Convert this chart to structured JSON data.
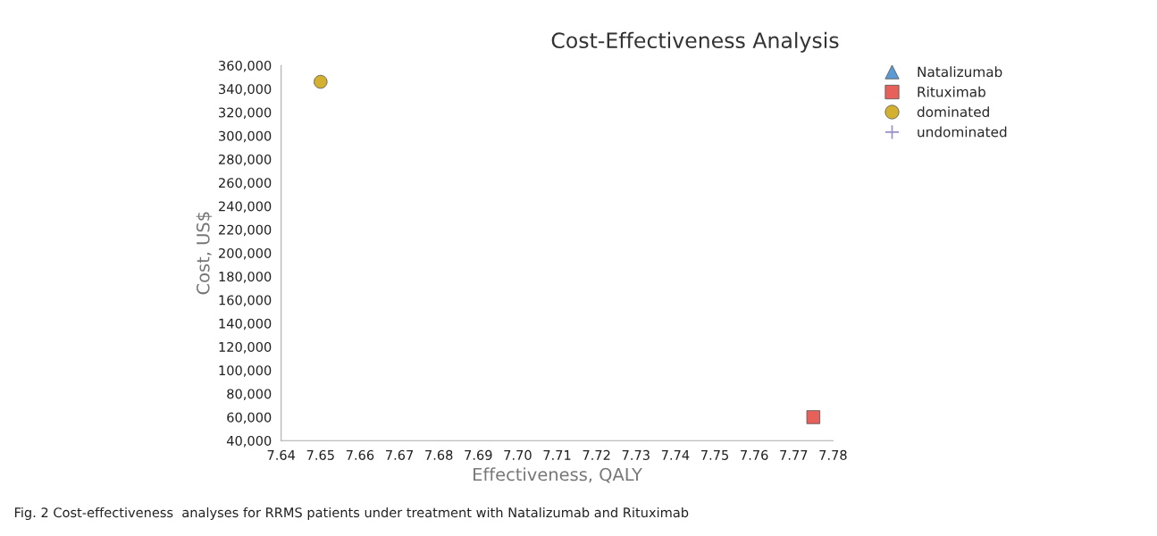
{
  "chart_data": {
    "type": "scatter",
    "title": "Cost-Effectiveness Analysis",
    "xlabel": "Effectiveness, QALY",
    "ylabel": "Cost, US$",
    "series": [
      {
        "name": "Natalizumab",
        "color": "#5b9bd5",
        "marker": "triangle",
        "values": [
          null
        ]
      },
      {
        "name": "Rituximab",
        "color": "#e8605a",
        "marker": "square",
        "x": [
          7.775
        ],
        "values": [
          60000
        ]
      },
      {
        "name": "dominated",
        "color": "#d4b030",
        "marker": "circle",
        "x": [
          7.65
        ],
        "values": [
          346000
        ]
      },
      {
        "name": "undominated",
        "color": "#9a90c8",
        "marker": "cross",
        "values": [
          null
        ]
      }
    ],
    "xlim": [
      7.64,
      7.78
    ],
    "xticks": [
      7.64,
      7.65,
      7.66,
      7.67,
      7.68,
      7.69,
      {
        "value": 7.7,
        "label": "7.70"
      },
      7.71,
      7.72,
      7.73,
      7.74,
      7.75,
      7.76,
      7.77,
      7.78
    ],
    "ylim": [
      40000,
      360000
    ],
    "yticks": [
      {
        "value": 40000,
        "label": "40,000"
      },
      {
        "value": 60000,
        "label": "60,000"
      },
      {
        "value": 80000,
        "label": "80,000"
      },
      {
        "value": 100000,
        "label": "100,000"
      },
      {
        "value": 120000,
        "label": "120,000"
      },
      {
        "value": 140000,
        "label": "140,000"
      },
      {
        "value": 160000,
        "label": "160,000"
      },
      {
        "value": 180000,
        "label": "180,000"
      },
      {
        "value": 200000,
        "label": "200,000"
      },
      {
        "value": 220000,
        "label": "220,000"
      },
      {
        "value": 240000,
        "label": "240,000"
      },
      {
        "value": 260000,
        "label": "260,000"
      },
      {
        "value": 280000,
        "label": "280,000"
      },
      {
        "value": 300000,
        "label": "300,000"
      },
      {
        "value": 320000,
        "label": "320,000"
      },
      {
        "value": 340000,
        "label": "340,000"
      },
      {
        "value": 360000,
        "label": "360,000"
      }
    ],
    "grid": false,
    "legend": "top right",
    "annotations": [
      "Fig. 2 Cost-effectiveness  analyses for RRMS patients under treatment with Natalizumab and Rituximab"
    ]
  }
}
